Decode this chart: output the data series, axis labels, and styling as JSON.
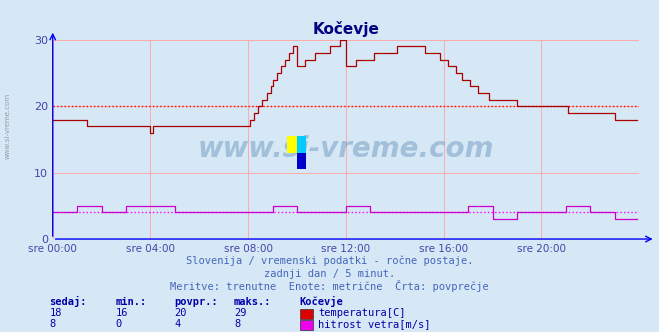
{
  "title": "Kočevje",
  "title_color": "#000080",
  "bg_color": "#d6e8f5",
  "plot_bg_color": "#d6e8f5",
  "grid_color": "#ffaaaa",
  "ylabel_color": "#4444aa",
  "xlabel_color": "#4444aa",
  "yticks": [
    0,
    10,
    20,
    30
  ],
  "ylim": [
    0,
    30
  ],
  "xtick_labels": [
    "sre 00:00",
    "sre 04:00",
    "sre 08:00",
    "sre 12:00",
    "sre 16:00",
    "sre 20:00"
  ],
  "xtick_positions": [
    0,
    48,
    96,
    144,
    192,
    240
  ],
  "total_points": 288,
  "temp_avg_line": 20,
  "temp_avg_color": "#ff0000",
  "wind_avg_line": 4,
  "wind_avg_color": "#ff00ff",
  "temp_line_color": "#aa0000",
  "wind_line_color": "#cc00cc",
  "subtitle1": "Slovenija / vremenski podatki - ročne postaje.",
  "subtitle2": "zadnji dan / 5 minut.",
  "subtitle3": "Meritve: trenutne  Enote: metrične  Črta: povprečje",
  "subtitle_color": "#4466bb",
  "table_header_color": "#0000aa",
  "table_data_color": "#0000aa",
  "table_header": [
    "sedaj:",
    "min.:",
    "povpr.:",
    "maks.:",
    "Kočevje"
  ],
  "table_row1": [
    "18",
    "16",
    "20",
    "29"
  ],
  "table_row2": [
    "8",
    "0",
    "4",
    "8"
  ],
  "legend1_label": "temperatura[C]",
  "legend2_label": "hitrost vetra[m/s]",
  "legend1_color": "#dd0000",
  "legend2_color": "#ee00ee",
  "watermark": "www.si-vreme.com",
  "watermark_color": "#4477aa",
  "watermark_alpha": 0.35,
  "left_text": "www.si-vreme.com"
}
